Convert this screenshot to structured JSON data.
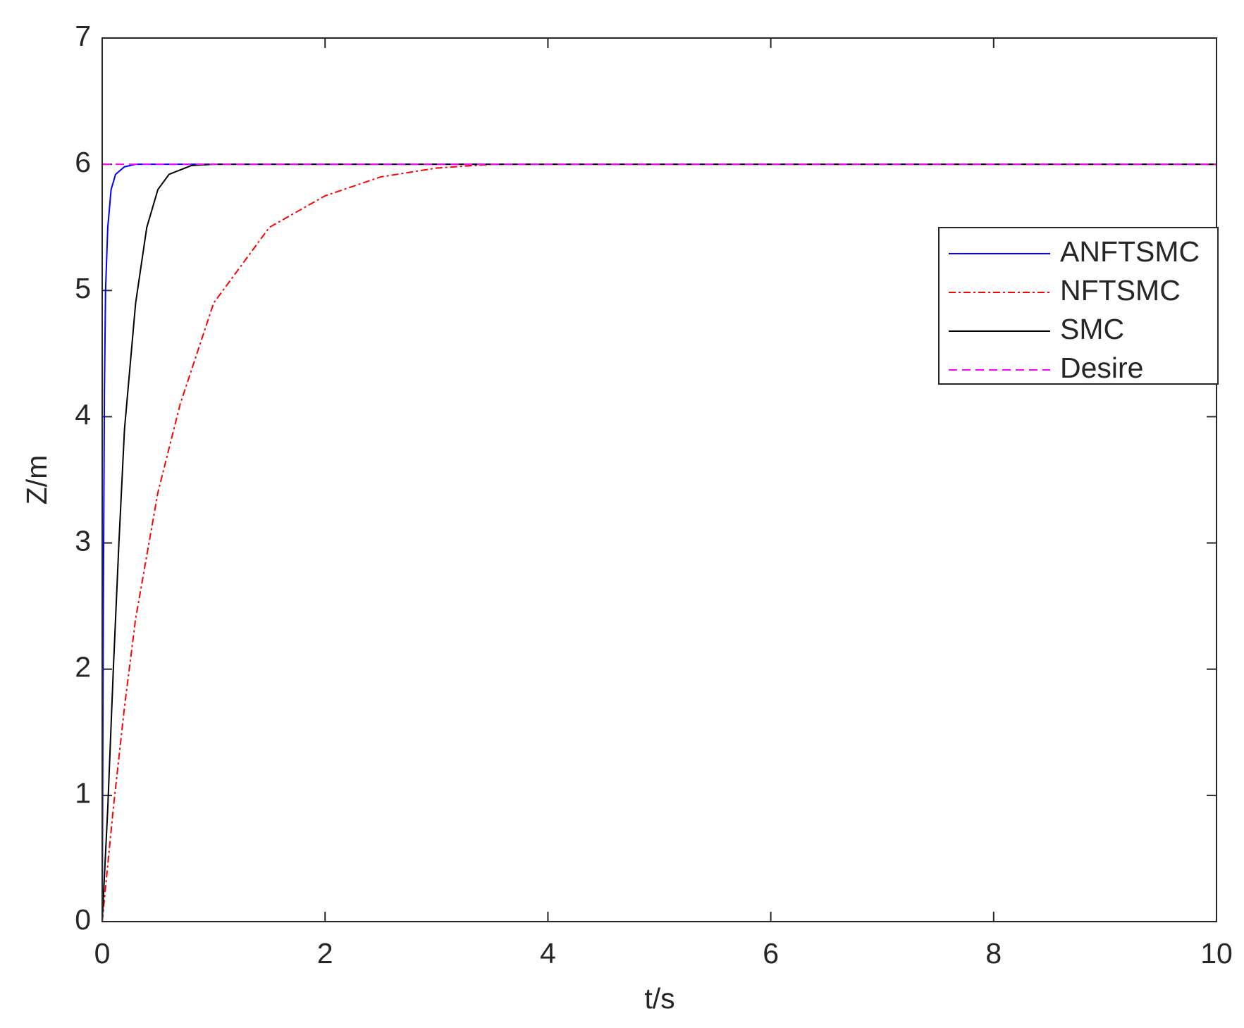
{
  "chart_data": {
    "type": "line",
    "xlabel": "t/s",
    "ylabel": "Z/m",
    "xlim": [
      0,
      10
    ],
    "ylim": [
      0,
      7
    ],
    "xticks": [
      0,
      2,
      4,
      6,
      8,
      10
    ],
    "yticks": [
      0,
      1,
      2,
      3,
      4,
      5,
      6,
      7
    ],
    "grid": false,
    "legend": "upper right",
    "series": [
      {
        "name": "ANFTSMC",
        "color": "#0000ff",
        "linestyle": "solid",
        "x": [
          0,
          0.01,
          0.02,
          0.03,
          0.05,
          0.08,
          0.12,
          0.2,
          0.3,
          0.5,
          1,
          10
        ],
        "values": [
          0,
          2.5,
          4.2,
          5.0,
          5.5,
          5.8,
          5.92,
          5.98,
          6,
          6,
          6,
          6
        ]
      },
      {
        "name": "NFTSMC",
        "color": "#ff0000",
        "linestyle": "dashdot",
        "x": [
          0,
          0.1,
          0.2,
          0.3,
          0.4,
          0.5,
          0.7,
          1,
          1.5,
          2,
          2.5,
          3,
          3.5,
          10
        ],
        "values": [
          0,
          0.9,
          1.7,
          2.4,
          2.9,
          3.4,
          4.1,
          4.9,
          5.5,
          5.75,
          5.9,
          5.97,
          6,
          6
        ]
      },
      {
        "name": "SMC",
        "color": "#000000",
        "linestyle": "solid",
        "x": [
          0,
          0.05,
          0.1,
          0.15,
          0.2,
          0.3,
          0.4,
          0.5,
          0.6,
          0.8,
          1,
          10
        ],
        "values": [
          0,
          0.9,
          2.0,
          3.0,
          3.9,
          4.9,
          5.5,
          5.8,
          5.92,
          5.99,
          6,
          6
        ]
      },
      {
        "name": "Desire",
        "color": "#ff00ff",
        "linestyle": "dashed",
        "x": [
          0,
          10
        ],
        "values": [
          6,
          6
        ]
      }
    ]
  }
}
